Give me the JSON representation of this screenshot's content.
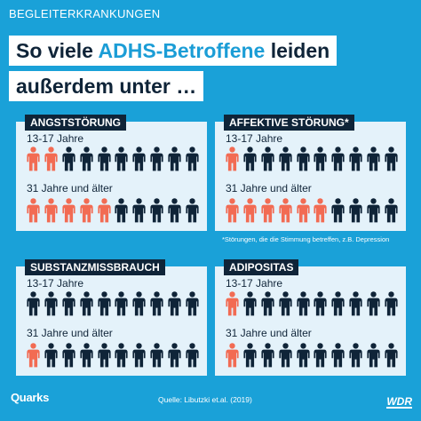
{
  "header": {
    "kicker": "BEGLEITERKRANKUNGEN",
    "title_line1_prefix": "So viele ",
    "title_line1_accent": "ADHS-Betroffene",
    "title_line1_suffix": " leiden",
    "title_line2": "außerdem unter …"
  },
  "colors": {
    "background": "#1aa1d8",
    "highlight": "#f26b53",
    "figure": "#0f2438",
    "panel": "#e4f2fa"
  },
  "panels": [
    {
      "title": "ANGSTSTÖRUNG",
      "groups": [
        {
          "label": "13-17 Jahre",
          "highlighted": 2,
          "total": 10
        },
        {
          "label": "31 Jahre und älter",
          "highlighted": 5,
          "total": 10
        }
      ]
    },
    {
      "title": "AFFEKTIVE STÖRUNG*",
      "groups": [
        {
          "label": "13-17 Jahre",
          "highlighted": 1,
          "total": 10
        },
        {
          "label": "31 Jahre und älter",
          "highlighted": 6,
          "total": 10
        }
      ]
    },
    {
      "title": "SUBSTANZMISSBRAUCH",
      "groups": [
        {
          "label": "13-17 Jahre",
          "highlighted": 0,
          "total": 10
        },
        {
          "label": "31 Jahre und älter",
          "highlighted": 1,
          "total": 10
        }
      ]
    },
    {
      "title": "ADIPOSITAS",
      "groups": [
        {
          "label": "13-17 Jahre",
          "highlighted": 1,
          "total": 10
        },
        {
          "label": "31 Jahre und älter",
          "highlighted": 1,
          "total": 10
        }
      ]
    }
  ],
  "footnote": "*Störungen, die die Stimmung betreffen, z.B. Depression",
  "footer": {
    "logo": "Quarks",
    "source": "Quelle: Libutzki et.al. (2019)",
    "brand": "WDR"
  }
}
